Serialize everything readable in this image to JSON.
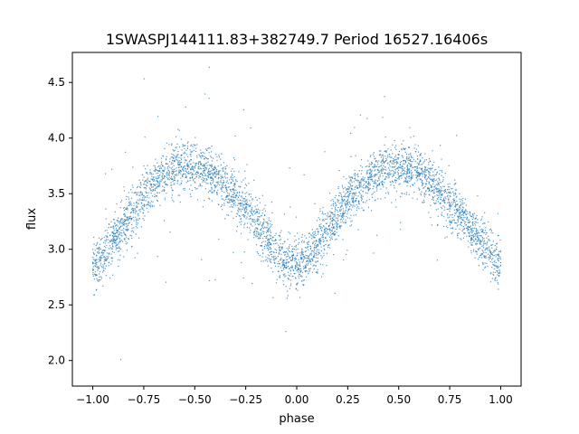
{
  "chart_data": {
    "type": "scatter",
    "title": "1SWASPJ144111.83+382749.7 Period 16527.16406s",
    "xlabel": "phase",
    "ylabel": "flux",
    "xlim": [
      -1.1,
      1.1
    ],
    "ylim": [
      1.77,
      4.77
    ],
    "xticks": [
      -1.0,
      -0.75,
      -0.5,
      -0.25,
      0.0,
      0.25,
      0.5,
      0.75,
      1.0
    ],
    "xtick_labels": [
      "−1.00",
      "−0.75",
      "−0.50",
      "−0.25",
      "0.00",
      "0.25",
      "0.50",
      "0.75",
      "1.00"
    ],
    "yticks": [
      2.0,
      2.5,
      3.0,
      3.5,
      4.0,
      4.5
    ],
    "ytick_labels": [
      "2.0",
      "2.5",
      "3.0",
      "3.5",
      "4.0",
      "4.5"
    ],
    "grid": false,
    "marker_color": "#1f77b4",
    "series": [
      {
        "x": [
          -1.0,
          -0.95,
          -0.9,
          -0.85,
          -0.8,
          -0.75,
          -0.7,
          -0.65,
          -0.6,
          -0.55,
          -0.5,
          -0.45,
          -0.4,
          -0.35,
          -0.3,
          -0.25,
          -0.2,
          -0.15,
          -0.1,
          -0.05,
          0.0,
          0.05,
          0.1,
          0.15,
          0.2,
          0.25,
          0.3,
          0.35,
          0.4,
          0.45,
          0.5,
          0.55,
          0.6,
          0.65,
          0.7,
          0.75,
          0.8,
          0.85,
          0.9,
          0.95,
          1.0
        ],
        "y": [
          2.88,
          2.95,
          3.08,
          3.22,
          3.35,
          3.48,
          3.58,
          3.66,
          3.72,
          3.75,
          3.74,
          3.71,
          3.65,
          3.57,
          3.48,
          3.38,
          3.25,
          3.1,
          2.97,
          2.88,
          2.86,
          2.92,
          3.04,
          3.18,
          3.31,
          3.44,
          3.55,
          3.63,
          3.69,
          3.73,
          3.74,
          3.72,
          3.67,
          3.6,
          3.52,
          3.42,
          3.32,
          3.2,
          3.08,
          2.97,
          2.88
        ]
      }
    ]
  }
}
